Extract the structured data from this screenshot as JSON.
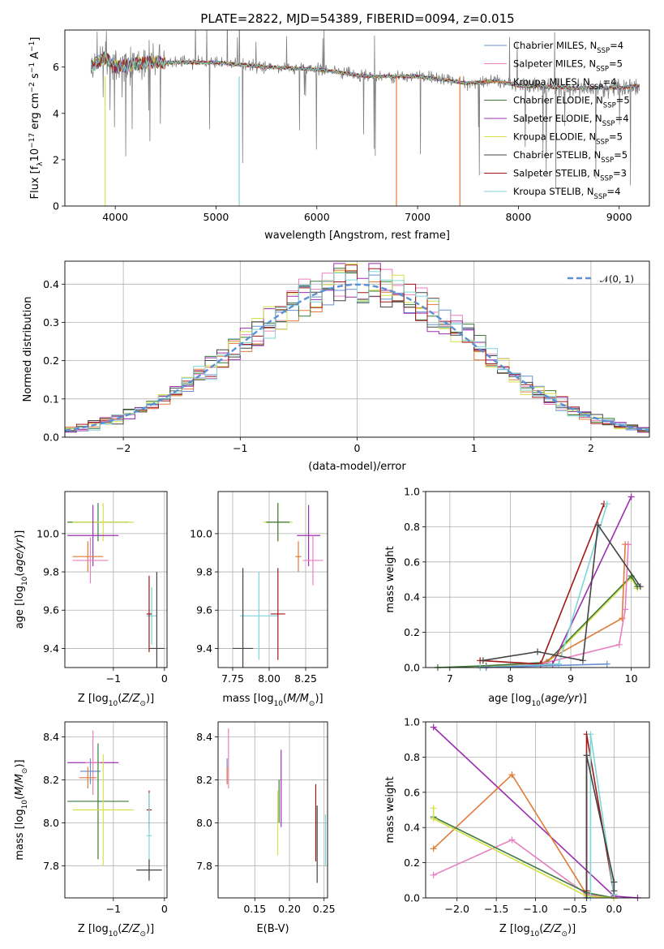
{
  "figure": {
    "title": "PLATE=2822, MJD=54389, FIBERID=0094, z=0.015"
  },
  "colors": {
    "chabrier_miles": "#6a8fd0",
    "salpeter_miles": "#e87fbf",
    "kroupa_miles": "#e07b39",
    "chabrier_elodie": "#3b7a3b",
    "salpeter_elodie": "#9b2fb0",
    "kroupa_elodie": "#d6e04a",
    "chabrier_stelib": "#444444",
    "salpeter_stelib": "#a01818",
    "kroupa_stelib": "#7fd6d6",
    "data": "#808080",
    "normal": "#5b8fd6",
    "grid": "#b0b0b0"
  },
  "chart_data": [
    {
      "id": "spectrum",
      "type": "line",
      "title": "PLATE=2822, MJD=54389, FIBERID=0094, z=0.015",
      "xlabel": "wavelength [Angstrom, rest frame]",
      "ylabel": "Flux [f_λ 10^-17 erg cm^-2 s^-1 A^-1]",
      "xlim": [
        3500,
        9300
      ],
      "ylim": [
        0,
        7.6
      ],
      "xticks": [
        4000,
        5000,
        6000,
        7000,
        8000,
        9000
      ],
      "yticks": [
        0,
        2,
        4,
        6
      ],
      "grid": false,
      "legend_position": "top-right",
      "continuum": {
        "x": [
          3760,
          3900,
          4000,
          4300,
          4500,
          5000,
          5500,
          6000,
          6500,
          7000,
          7500,
          7800,
          8000,
          8500,
          9000,
          9200
        ],
        "y": [
          6.0,
          6.4,
          6.0,
          6.2,
          6.2,
          6.2,
          6.0,
          5.9,
          5.6,
          5.6,
          5.3,
          5.4,
          5.2,
          5.1,
          5.1,
          5.2
        ]
      },
      "series": [
        {
          "key": "chabrier_miles",
          "name": "Chabrier MILES, N_SSP=4",
          "label_main": "Chabrier MILES, N",
          "label_sub": "SSP",
          "label_tail": "=4"
        },
        {
          "key": "salpeter_miles",
          "name": "Salpeter MILES, N_SSP=5",
          "label_main": "Salpeter MILES, N",
          "label_sub": "SSP",
          "label_tail": "=5"
        },
        {
          "key": "kroupa_miles",
          "name": "Kroupa MILES, N_SSP=4",
          "label_main": "Kroupa MILES, N",
          "label_sub": "SSP",
          "label_tail": "=4"
        },
        {
          "key": "chabrier_elodie",
          "name": "Chabrier ELODIE, N_SSP=5",
          "label_main": "Chabrier ELODIE, N",
          "label_sub": "SSP",
          "label_tail": "=5"
        },
        {
          "key": "salpeter_elodie",
          "name": "Salpeter ELODIE, N_SSP=4",
          "label_main": "Salpeter ELODIE, N",
          "label_sub": "SSP",
          "label_tail": "=4"
        },
        {
          "key": "kroupa_elodie",
          "name": "Kroupa ELODIE, N_SSP=5",
          "label_main": "Kroupa ELODIE, N",
          "label_sub": "SSP",
          "label_tail": "=5"
        },
        {
          "key": "chabrier_stelib",
          "name": "Chabrier STELIB, N_SSP=5",
          "label_main": "Chabrier STELIB, N",
          "label_sub": "SSP",
          "label_tail": "=5"
        },
        {
          "key": "salpeter_stelib",
          "name": "Salpeter STELIB, N_SSP=3",
          "label_main": "Salpeter STELIB, N",
          "label_sub": "SSP",
          "label_tail": "=3"
        },
        {
          "key": "kroupa_stelib",
          "name": "Kroupa STELIB, N_SSP=4",
          "label_main": "Kroupa STELIB, N",
          "label_sub": "SSP",
          "label_tail": "=4"
        }
      ],
      "drops": [
        {
          "key": "kroupa_elodie",
          "x": 3900
        },
        {
          "key": "kroupa_stelib",
          "x": 5230
        },
        {
          "key": "kroupa_miles",
          "x": 6790
        },
        {
          "key": "kroupa_miles",
          "x": 7420
        }
      ]
    },
    {
      "id": "residuals",
      "type": "line",
      "xlabel": "(data-model)/error",
      "ylabel": "Normed distribution",
      "xlim": [
        -2.5,
        2.5
      ],
      "ylim": [
        0,
        0.46
      ],
      "xticks": [
        -2,
        -1,
        0,
        1,
        2
      ],
      "yticks": [
        0.0,
        0.1,
        0.2,
        0.3,
        0.4
      ],
      "grid": true,
      "legend": "𝒩(0, 1)",
      "legend_position": "top-right"
    },
    {
      "id": "z_age",
      "type": "scatter",
      "xlabel": "Z [log10(Z/Z⊙)]",
      "ylabel": "age  [log10(age/yr)]",
      "xlim": [
        -1.95,
        0.05
      ],
      "ylim": [
        9.3,
        10.22
      ],
      "xticks": [
        -1,
        0
      ],
      "yticks": [
        9.4,
        9.6,
        9.8,
        10.0
      ],
      "grid": true,
      "points": [
        {
          "key": "chabrier_elodie",
          "x": -1.3,
          "y": 10.06,
          "xe": 0.6,
          "ye": 0.1
        },
        {
          "key": "kroupa_elodie",
          "x": -1.2,
          "y": 10.06,
          "xe": 0.6,
          "ye": 0.1
        },
        {
          "key": "salpeter_elodie",
          "x": -1.4,
          "y": 9.99,
          "xe": 0.5,
          "ye": 0.16
        },
        {
          "key": "kroupa_miles",
          "x": -1.5,
          "y": 9.88,
          "xe": 0.3,
          "ye": 0.08
        },
        {
          "key": "salpeter_miles",
          "x": -1.45,
          "y": 9.86,
          "xe": 0.35,
          "ye": 0.12
        },
        {
          "key": "kroupa_stelib",
          "x": -0.25,
          "y": 9.57,
          "xe": 0.1,
          "ye": 0.15
        },
        {
          "key": "chabrier_stelib",
          "x": -0.15,
          "y": 9.4,
          "xe": 0.15,
          "ye": 0.4
        },
        {
          "key": "salpeter_stelib",
          "x": -0.3,
          "y": 9.58,
          "xe": 0.05,
          "ye": 0.2
        }
      ]
    },
    {
      "id": "mass_age",
      "type": "scatter",
      "xlabel": "mass [log10(M/M⊙)]",
      "ylabel": "",
      "xlim": [
        7.65,
        8.4
      ],
      "ylim": [
        9.3,
        10.22
      ],
      "xticks": [
        7.75,
        8.0,
        8.25
      ],
      "yticks": [
        9.4,
        9.6,
        9.8,
        10.0
      ],
      "grid": true,
      "points": [
        {
          "key": "kroupa_elodie",
          "x": 8.06,
          "y": 10.06,
          "xe": 0.1,
          "ye": 0.1
        },
        {
          "key": "chabrier_elodie",
          "x": 8.06,
          "y": 10.06,
          "xe": 0.08,
          "ye": 0.1
        },
        {
          "key": "salpeter_elodie",
          "x": 8.27,
          "y": 9.99,
          "xe": 0.08,
          "ye": 0.16
        },
        {
          "key": "kroupa_miles",
          "x": 8.2,
          "y": 9.88,
          "xe": 0.02,
          "ye": 0.08
        },
        {
          "key": "salpeter_miles",
          "x": 8.3,
          "y": 9.86,
          "xe": 0.07,
          "ye": 0.13
        },
        {
          "key": "kroupa_stelib",
          "x": 7.93,
          "y": 9.57,
          "xe": 0.13,
          "ye": 0.23
        },
        {
          "key": "chabrier_stelib",
          "x": 7.82,
          "y": 9.4,
          "xe": 0.07,
          "ye": 0.42
        },
        {
          "key": "salpeter_stelib",
          "x": 8.06,
          "y": 9.58,
          "xe": 0.05,
          "ye": 0.24
        }
      ]
    },
    {
      "id": "age_weight",
      "type": "line",
      "xlabel": "age  [log10(age/yr)]",
      "ylabel": "mass weight",
      "xlim": [
        6.6,
        10.3
      ],
      "ylim": [
        0.0,
        1.0
      ],
      "xticks": [
        7,
        8,
        9,
        10
      ],
      "yticks": [
        0.0,
        0.2,
        0.4,
        0.6,
        0.8,
        1.0
      ],
      "grid": true,
      "series": [
        {
          "key": "kroupa_elodie",
          "x": [
            6.8,
            7.6,
            8.6,
            10.0,
            10.1
          ],
          "y": [
            0.0,
            0.01,
            0.02,
            0.51,
            0.45
          ]
        },
        {
          "key": "chabrier_elodie",
          "x": [
            6.8,
            7.6,
            8.6,
            10.0,
            10.1
          ],
          "y": [
            0.0,
            0.01,
            0.03,
            0.52,
            0.46
          ]
        },
        {
          "key": "kroupa_miles",
          "x": [
            7.6,
            8.5,
            9.85,
            9.9,
            9.95
          ],
          "y": [
            0.0,
            0.02,
            0.28,
            0.7,
            0.7
          ]
        },
        {
          "key": "salpeter_miles",
          "x": [
            7.6,
            8.5,
            9.8,
            9.9,
            9.95
          ],
          "y": [
            0.0,
            0.02,
            0.13,
            0.33,
            0.7
          ]
        },
        {
          "key": "salpeter_elodie",
          "x": [
            7.5,
            8.7,
            10.0
          ],
          "y": [
            0.0,
            0.02,
            0.97
          ]
        },
        {
          "key": "salpeter_stelib",
          "x": [
            7.5,
            8.5,
            9.55
          ],
          "y": [
            0.04,
            0.02,
            0.93
          ]
        },
        {
          "key": "kroupa_stelib",
          "x": [
            7.5,
            8.8,
            9.6
          ],
          "y": [
            0.0,
            0.02,
            0.93
          ]
        },
        {
          "key": "chabrier_stelib",
          "x": [
            7.55,
            8.45,
            9.2,
            9.45,
            10.15
          ],
          "y": [
            0.04,
            0.09,
            0.04,
            0.81,
            0.46
          ]
        },
        {
          "key": "chabrier_miles",
          "x": [
            7.6,
            9.6
          ],
          "y": [
            0.0,
            0.02
          ]
        }
      ]
    },
    {
      "id": "z_mass",
      "type": "scatter",
      "xlabel": "Z [log10(Z/Z⊙)]",
      "ylabel": "mass [log10(M/M⊙)]",
      "xlim": [
        -1.95,
        0.05
      ],
      "ylim": [
        7.65,
        8.47
      ],
      "xticks": [
        -1,
        0
      ],
      "yticks": [
        7.8,
        8.0,
        8.2,
        8.4
      ],
      "grid": true,
      "points": [
        {
          "key": "salpeter_elodie",
          "x": -1.4,
          "y": 8.28,
          "xe": 0.5,
          "ye": 0.0
        },
        {
          "key": "salpeter_miles",
          "x": -1.4,
          "y": 8.28,
          "xe": 0.15,
          "ye": 0.15
        },
        {
          "key": "chabrier_miles",
          "x": -1.45,
          "y": 8.24,
          "xe": 0.2,
          "ye": 0.06
        },
        {
          "key": "kroupa_miles",
          "x": -1.5,
          "y": 8.21,
          "xe": 0.17,
          "ye": 0.05
        },
        {
          "key": "chabrier_elodie",
          "x": -1.3,
          "y": 8.1,
          "xe": 0.6,
          "ye": 0.27
        },
        {
          "key": "kroupa_elodie",
          "x": -1.2,
          "y": 8.06,
          "xe": 0.6,
          "ye": 0.26
        },
        {
          "key": "salpeter_stelib",
          "x": -0.3,
          "y": 8.06,
          "xe": 0.05,
          "ye": 0.09
        },
        {
          "key": "kroupa_stelib",
          "x": -0.3,
          "y": 7.94,
          "xe": 0.05,
          "ye": 0.2
        },
        {
          "key": "chabrier_stelib",
          "x": -0.3,
          "y": 7.78,
          "xe": 0.25,
          "ye": 0.05
        }
      ]
    },
    {
      "id": "ebv_mass",
      "type": "scatter",
      "xlabel": "E(B-V)",
      "ylabel": "",
      "xlim": [
        0.097,
        0.255
      ],
      "ylim": [
        7.65,
        8.47
      ],
      "xticks": [
        0.15,
        0.2,
        0.25
      ],
      "yticks": [
        7.8,
        8.0,
        8.2,
        8.4
      ],
      "grid": true,
      "points": [
        {
          "key": "chabrier_miles",
          "x": 0.11,
          "y": 8.24,
          "xe": 0.0,
          "ye": 0.06
        },
        {
          "key": "salpeter_miles",
          "x": 0.112,
          "y": 8.3,
          "xe": 0.0,
          "ye": 0.14
        },
        {
          "key": "kroupa_miles",
          "x": 0.11,
          "y": 8.22,
          "xe": 0.0,
          "ye": 0.04
        },
        {
          "key": "salpeter_elodie",
          "x": 0.188,
          "y": 8.16,
          "xe": 0.0,
          "ye": 0.18
        },
        {
          "key": "kroupa_elodie",
          "x": 0.183,
          "y": 8.0,
          "xe": 0.0,
          "ye": 0.15
        },
        {
          "key": "chabrier_elodie",
          "x": 0.185,
          "y": 8.1,
          "xe": 0.0,
          "ye": 0.1
        },
        {
          "key": "salpeter_stelib",
          "x": 0.238,
          "y": 8.0,
          "xe": 0.0,
          "ye": 0.18
        },
        {
          "key": "chabrier_stelib",
          "x": 0.24,
          "y": 7.9,
          "xe": 0.0,
          "ye": 0.18
        },
        {
          "key": "kroupa_stelib",
          "x": 0.252,
          "y": 7.92,
          "xe": 0.0,
          "ye": 0.12
        }
      ]
    },
    {
      "id": "z_weight",
      "type": "line",
      "xlabel": "Z [log10(Z/Z⊙)]",
      "ylabel": "mass weight",
      "xlim": [
        -2.4,
        0.45
      ],
      "ylim": [
        0.0,
        1.0
      ],
      "xticks": [
        -2.0,
        -1.5,
        -1.0,
        -0.5,
        0.0
      ],
      "yticks": [
        0.0,
        0.2,
        0.4,
        0.6,
        0.8,
        1.0
      ],
      "grid": true,
      "series": [
        {
          "key": "salpeter_elodie",
          "x": [
            -2.3,
            0.0,
            0.3
          ],
          "y": [
            0.97,
            0.01,
            0.0
          ]
        },
        {
          "key": "kroupa_miles",
          "x": [
            -2.3,
            -1.3,
            -0.35,
            0.0
          ],
          "y": [
            0.28,
            0.7,
            0.02,
            0.0
          ]
        },
        {
          "key": "salpeter_miles",
          "x": [
            -2.3,
            -1.3,
            -0.35,
            0.0
          ],
          "y": [
            0.13,
            0.33,
            0.02,
            0.0
          ]
        },
        {
          "key": "chabrier_elodie",
          "x": [
            -2.3,
            -0.35,
            0.0
          ],
          "y": [
            0.46,
            0.03,
            0.0
          ]
        },
        {
          "key": "kroupa_elodie",
          "x": [
            -2.3,
            -2.3,
            -0.35,
            0.0
          ],
          "y": [
            0.51,
            0.45,
            0.01,
            0.0
          ]
        },
        {
          "key": "salpeter_stelib",
          "x": [
            -0.35,
            -0.35,
            0.0
          ],
          "y": [
            0.04,
            0.93,
            0.02
          ]
        },
        {
          "key": "kroupa_stelib",
          "x": [
            -0.3,
            -0.3,
            0.0
          ],
          "y": [
            0.0,
            0.93,
            0.02
          ]
        },
        {
          "key": "chabrier_stelib",
          "x": [
            -0.35,
            -0.35,
            0.0,
            0.0
          ],
          "y": [
            0.0,
            0.81,
            0.09,
            0.04
          ]
        }
      ]
    }
  ]
}
